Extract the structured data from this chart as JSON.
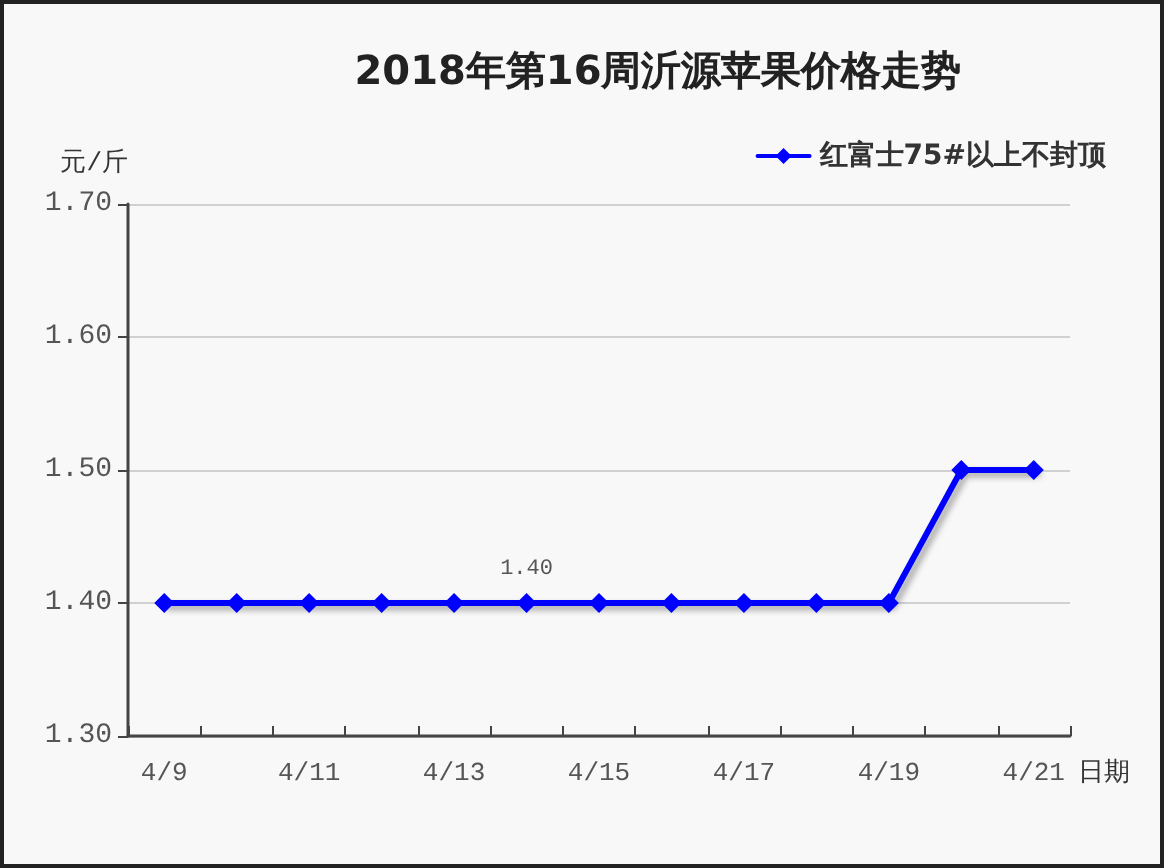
{
  "chart_data": {
    "type": "line",
    "title": "2018年第16周沂源苹果价格走势",
    "ylabel": "元/斤",
    "xlabel": "日期",
    "categories": [
      "4/9",
      null,
      "4/11",
      null,
      "4/13",
      null,
      "4/15",
      null,
      "4/17",
      null,
      "4/19",
      null,
      "4/21"
    ],
    "series": [
      {
        "name": "红富士75#以上不封顶",
        "color": "#0000ff",
        "values": [
          1.4,
          1.4,
          1.4,
          1.4,
          1.4,
          1.4,
          1.4,
          1.4,
          1.4,
          1.4,
          1.4,
          1.5,
          1.5
        ],
        "value_labels": [
          null,
          null,
          null,
          null,
          null,
          "1.40",
          null,
          null,
          null,
          null,
          null,
          null,
          null
        ]
      }
    ],
    "ylim": [
      1.3,
      1.7
    ],
    "yticks": [
      {
        "value": 1.3,
        "label": "1.30"
      },
      {
        "value": 1.4,
        "label": "1.40"
      },
      {
        "value": 1.5,
        "label": "1.50"
      },
      {
        "value": 1.6,
        "label": "1.60"
      },
      {
        "value": 1.7,
        "label": "1.70"
      }
    ],
    "grid": "y",
    "legend": "top right",
    "marker": "diamond",
    "line_style": "solid"
  }
}
